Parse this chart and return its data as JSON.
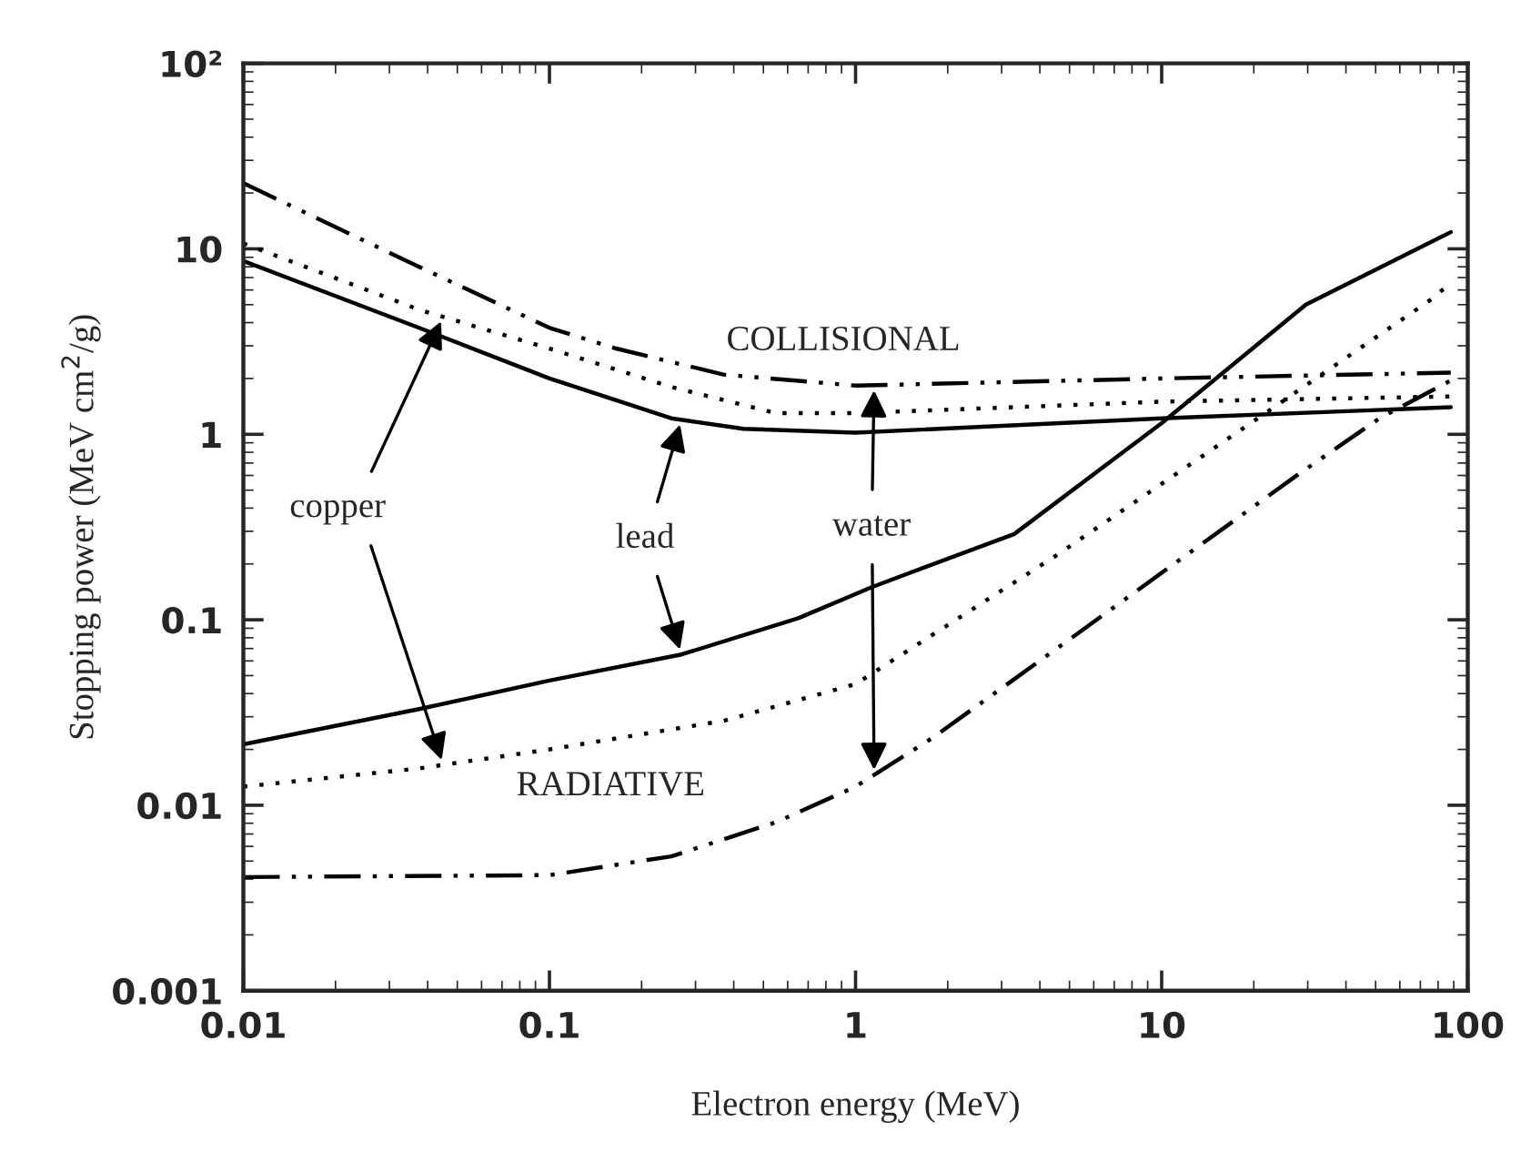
{
  "chart_data": {
    "type": "line",
    "xlabel": "Electron energy (MeV)",
    "ylabel": "Stopping power (MeV cm$^{2}$/g)",
    "log": "xy",
    "grid": false,
    "legend": false,
    "xlim": [
      0.01,
      100
    ],
    "xticks": [
      0.01,
      0.1,
      1,
      10,
      100
    ],
    "ylim": [
      0.001,
      100
    ],
    "yticks": [
      0.001,
      0.01,
      0.1,
      1,
      10,
      {
        "value": 100,
        "label": "10²"
      }
    ],
    "series": [
      {
        "color": "#000000",
        "line_style": "dotted",
        "x": [
          0.01,
          0.0375,
          0.1,
          0.25,
          0.55,
          1,
          10,
          88
        ],
        "values": [
          10.7,
          4.7,
          2.9,
          1.8,
          1.3,
          1.3,
          1.5,
          1.6
        ]
      },
      {
        "color": "#000000",
        "line_style": "solid",
        "x": [
          0.01,
          0.0375,
          0.1,
          0.25,
          0.43,
          1,
          10,
          88
        ],
        "values": [
          8.6,
          3.75,
          2.0,
          1.22,
          1.07,
          1.02,
          1.22,
          1.4
        ]
      },
      {
        "color": "#000000",
        "line_style": "dashdotdot",
        "x": [
          0.01,
          0.0375,
          0.1,
          0.165,
          0.37,
          1,
          10,
          88
        ],
        "values": [
          22.6,
          8.0,
          3.75,
          2.9,
          2.1,
          1.83,
          2.0,
          2.15
        ]
      },
      {
        "color": "#000000",
        "line_style": "dotted",
        "x": [
          0.01,
          0.0375,
          0.1,
          0.37,
          1,
          4.6,
          17.9,
          78,
          88
        ],
        "values": [
          0.0126,
          0.0158,
          0.02,
          0.0285,
          0.045,
          0.226,
          1.04,
          5.5,
          6.6
        ]
      },
      {
        "color": "#000000",
        "line_style": "solid",
        "x": [
          0.01,
          0.0375,
          0.1,
          0.27,
          0.65,
          1.13,
          3.3,
          10,
          29.6,
          88
        ],
        "values": [
          0.0213,
          0.033,
          0.047,
          0.065,
          0.102,
          0.15,
          0.29,
          1.15,
          5.0,
          12.3
        ]
      },
      {
        "color": "#000000",
        "line_style": "dashdotdot",
        "x": [
          0.01,
          0.1,
          0.25,
          0.55,
          1,
          1.78,
          4.6,
          9.1,
          28.4,
          51.5,
          88
        ],
        "values": [
          0.0041,
          0.0042,
          0.0053,
          0.0081,
          0.0126,
          0.023,
          0.071,
          0.16,
          0.62,
          1.22,
          1.95
        ]
      }
    ],
    "annotations": [
      {
        "text": "copper",
        "x": 0.045,
        "y": 4.3
      },
      {
        "text": "lead",
        "x": 0.27,
        "y": 1.2
      },
      {
        "text": "water",
        "x": 1.15,
        "y": 1.84
      },
      "COLLISIONAL",
      "RADIATIVE"
    ]
  }
}
